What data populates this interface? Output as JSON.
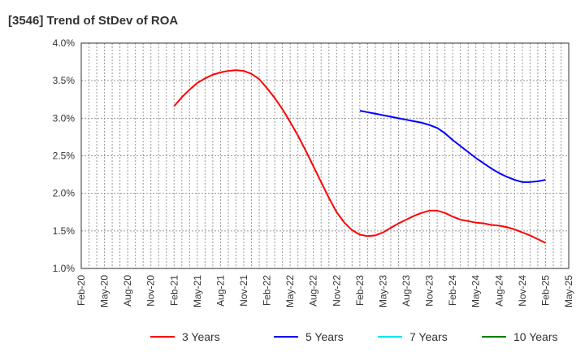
{
  "chart_data": {
    "type": "line",
    "title": "[3546]  Trend of StDev of ROA",
    "xlabel": "",
    "ylabel": "",
    "ylim": [
      1.0,
      4.0
    ],
    "yticks": [
      "1.0%",
      "1.5%",
      "2.0%",
      "2.5%",
      "3.0%",
      "3.5%",
      "4.0%"
    ],
    "xticks": [
      "Feb-20",
      "May-20",
      "Aug-20",
      "Nov-20",
      "Feb-21",
      "May-21",
      "Aug-21",
      "Nov-21",
      "Feb-22",
      "May-22",
      "Aug-22",
      "Nov-22",
      "Feb-23",
      "May-23",
      "Aug-23",
      "Nov-23",
      "Feb-24",
      "May-24",
      "Aug-24",
      "Nov-24",
      "Feb-25",
      "May-25"
    ],
    "grid": true,
    "legend_position": "bottom",
    "series": [
      {
        "name": "3 Years",
        "color": "#ff0000",
        "start": "Feb-21",
        "values": [
          3.16,
          3.28,
          3.38,
          3.47,
          3.53,
          3.58,
          3.61,
          3.63,
          3.64,
          3.63,
          3.59,
          3.52,
          3.4,
          3.27,
          3.12,
          2.95,
          2.77,
          2.57,
          2.36,
          2.15,
          1.94,
          1.75,
          1.61,
          1.51,
          1.45,
          1.43,
          1.44,
          1.48,
          1.54,
          1.6,
          1.65,
          1.7,
          1.74,
          1.77,
          1.77,
          1.74,
          1.69,
          1.65,
          1.63,
          1.61,
          1.6,
          1.58,
          1.57,
          1.55,
          1.52,
          1.48,
          1.44,
          1.39,
          1.34
        ]
      },
      {
        "name": "5 Years",
        "color": "#0000ff",
        "start": "Feb-23",
        "values": [
          3.1,
          3.08,
          3.06,
          3.04,
          3.02,
          3.0,
          2.98,
          2.96,
          2.94,
          2.91,
          2.87,
          2.8,
          2.71,
          2.63,
          2.55,
          2.47,
          2.4,
          2.33,
          2.27,
          2.22,
          2.18,
          2.15,
          2.15,
          2.16,
          2.18
        ]
      },
      {
        "name": "7 Years",
        "color": "#00e5ee",
        "start": "Feb-20",
        "values": []
      },
      {
        "name": "10 Years",
        "color": "#008000",
        "start": "Feb-20",
        "values": []
      }
    ]
  }
}
